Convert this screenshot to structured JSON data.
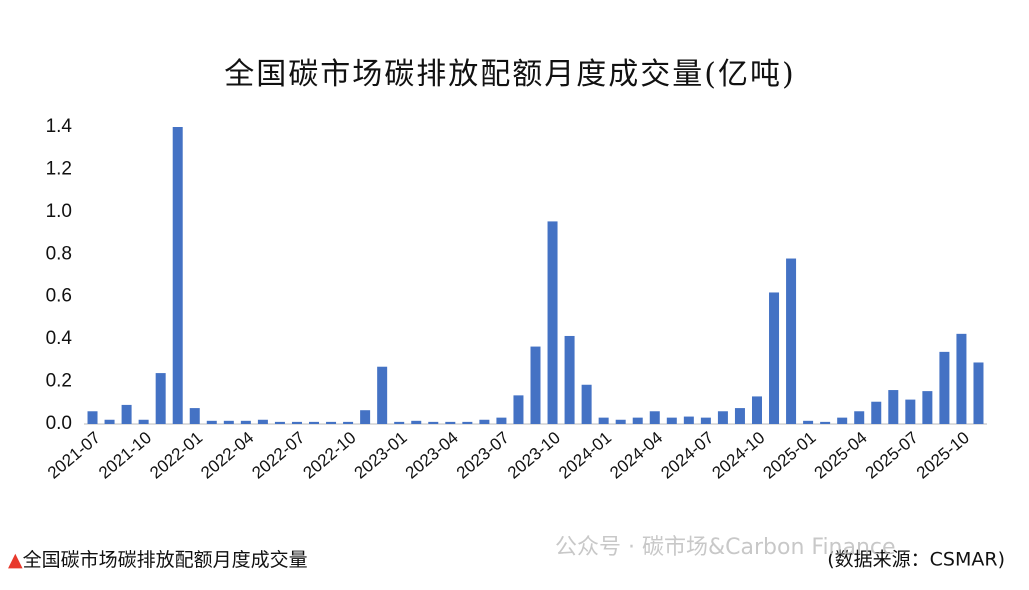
{
  "chart_data": {
    "type": "bar",
    "title": "全国碳市场碳排放配额月度成交量(亿吨)",
    "categories": [
      "2021-07",
      null,
      null,
      "2021-10",
      null,
      null,
      "2022-01",
      null,
      null,
      "2022-04",
      null,
      null,
      "2022-07",
      null,
      null,
      "2022-10",
      null,
      null,
      "2023-01",
      null,
      null,
      "2023-04",
      null,
      null,
      "2023-07",
      null,
      null,
      "2023-10",
      null,
      null,
      "2024-01",
      null,
      null,
      "2024-04",
      null,
      null,
      "2024-07",
      null,
      null,
      "2024-10",
      null,
      null,
      "2025-01",
      null,
      null,
      "2025-04",
      null,
      null,
      "2025-07",
      null,
      null,
      "2025-10",
      null
    ],
    "values": [
      0.06,
      0.02,
      0.09,
      0.02,
      0.24,
      1.4,
      0.075,
      0.015,
      0.015,
      0.015,
      0.02,
      0.01,
      0.01,
      0.01,
      0.01,
      0.01,
      0.065,
      0.27,
      0.01,
      0.015,
      0.01,
      0.01,
      0.01,
      0.02,
      0.03,
      0.135,
      0.365,
      0.955,
      0.415,
      0.185,
      0.03,
      0.02,
      0.03,
      0.06,
      0.03,
      0.035,
      0.03,
      0.06,
      0.075,
      0.13,
      0.62,
      0.78,
      0.015,
      0.01,
      0.03,
      0.06,
      0.105,
      0.16,
      0.115,
      0.155,
      0.34,
      0.425,
      0.29
    ],
    "color": "#4472c4",
    "ylim": [
      0,
      1.4
    ],
    "yticks": [
      {
        "value": 0,
        "label": "0.0"
      },
      0.2,
      0.4,
      0.6,
      0.8,
      {
        "value": 1,
        "label": "1.0"
      },
      1.2,
      1.4
    ],
    "grid": false,
    "legend_note": "▲全国碳市场碳排放配额月度成交量",
    "source": "(数据来源：CSMAR)",
    "watermark": "公众号 · 碳市场&Carbon Finance"
  }
}
